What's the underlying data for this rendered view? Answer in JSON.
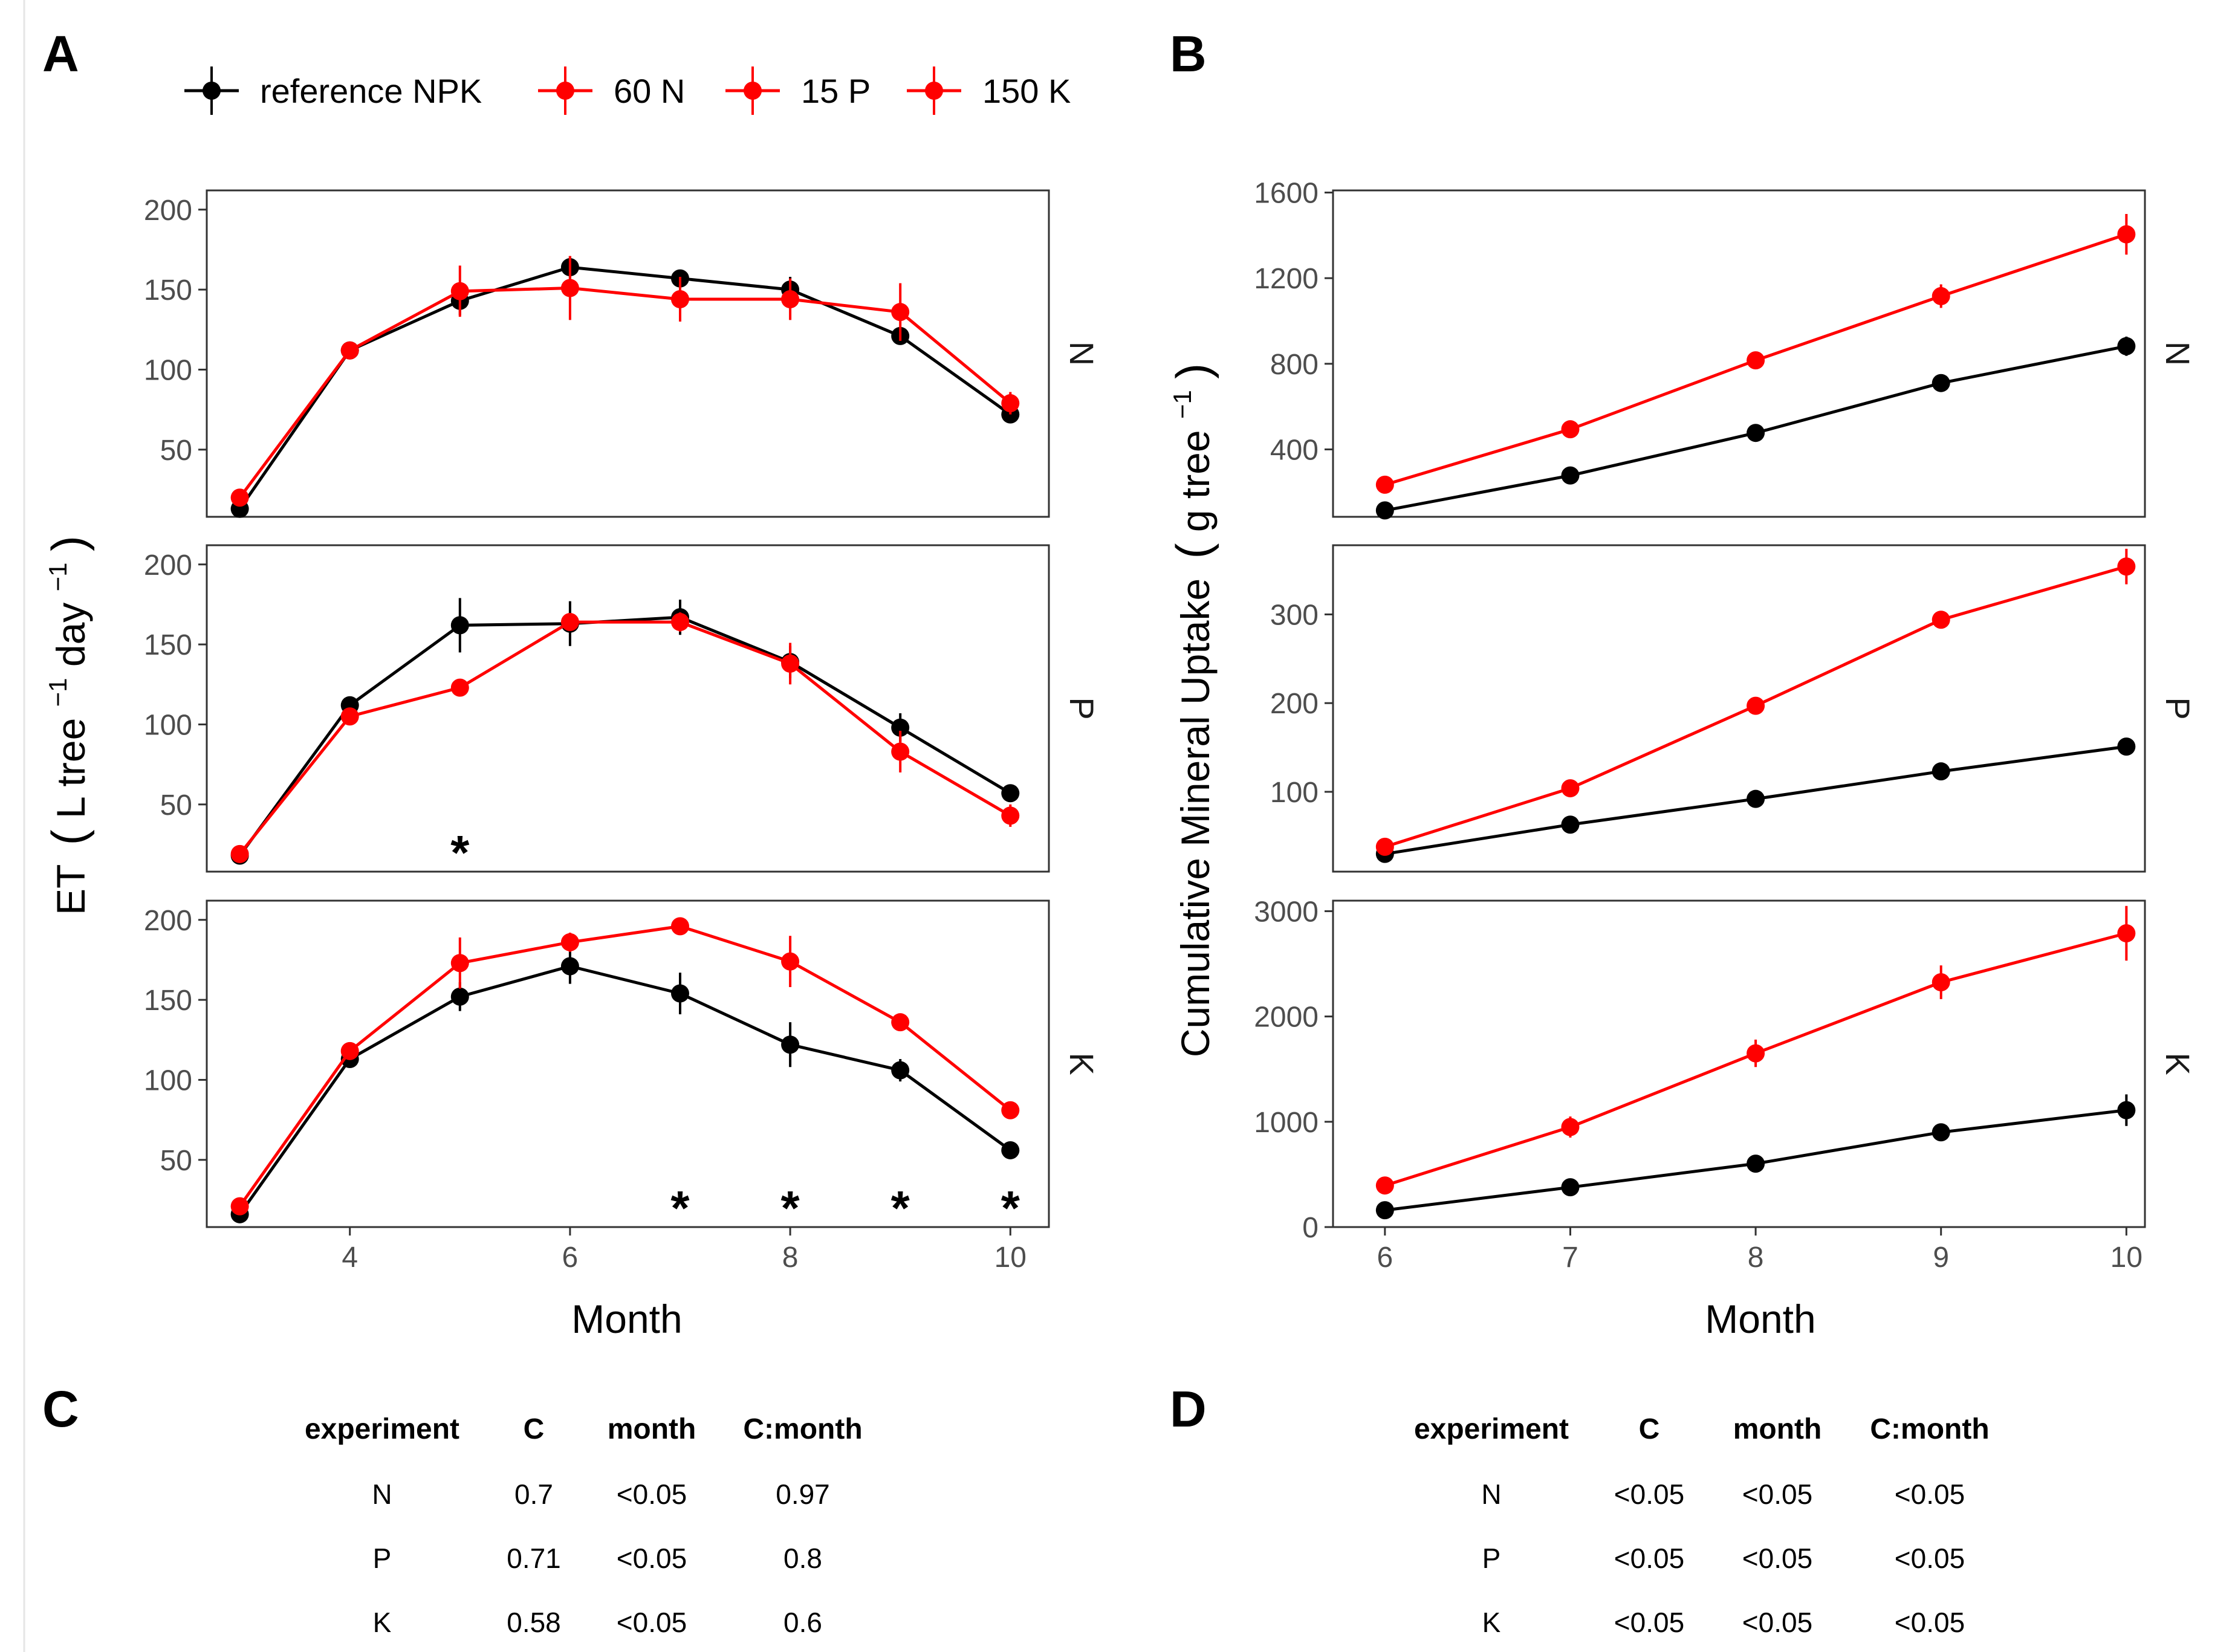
{
  "chart_data": [
    {
      "id": "A",
      "panel_label": "A",
      "type": "line",
      "xlabel": "Month",
      "ylabel": "ET (L tree⁻¹ day⁻¹)",
      "ylabel_parts": {
        "pre": "ET",
        "paren_l": "(",
        "u1": "L tree",
        "e1": "−1",
        "u2": " day",
        "e2": "−1",
        "paren_r": ")"
      },
      "xlim": [
        2.7,
        10.35
      ],
      "x_ticks": [
        4,
        6,
        8,
        10
      ],
      "x_tick_labels": [
        "4",
        "6",
        "8",
        "10"
      ],
      "ylim": [
        8,
        212
      ],
      "y_ticks": [
        50,
        100,
        150,
        200
      ],
      "y_tick_labels": [
        "50",
        "100",
        "150",
        "200"
      ],
      "legend": {
        "position": "top",
        "entries": [
          {
            "label": "reference NPK",
            "color": "#000000"
          },
          {
            "label": "60 N",
            "color": "#ff0000"
          },
          {
            "label": "15 P",
            "color": "#ff0000"
          },
          {
            "label": "150 K",
            "color": "#ff0000"
          }
        ]
      },
      "facets": [
        {
          "strip": "N",
          "series": [
            {
              "name": "reference NPK",
              "color": "#000000",
              "x": [
                3,
                4,
                5,
                6,
                7,
                8,
                9,
                10
              ],
              "y": [
                13,
                112,
                143,
                164,
                157,
                150,
                121,
                72
              ],
              "err": [
                2,
                4,
                9,
                7,
                4,
                8,
                4,
                4
              ]
            },
            {
              "name": "60 N",
              "color": "#ff0000",
              "x": [
                3,
                4,
                5,
                6,
                7,
                8,
                9,
                10
              ],
              "y": [
                20,
                112,
                149,
                151,
                144,
                144,
                136,
                79
              ],
              "err": [
                3,
                5,
                16,
                20,
                14,
                13,
                18,
                7
              ]
            }
          ],
          "stars": [],
          "stars_label": "*"
        },
        {
          "strip": "P",
          "series": [
            {
              "name": "reference NPK",
              "color": "#000000",
              "x": [
                3,
                4,
                5,
                6,
                7,
                8,
                9,
                10
              ],
              "y": [
                18,
                112,
                162,
                163,
                167,
                139,
                98,
                57
              ],
              "err": [
                3,
                4,
                17,
                14,
                11,
                10,
                9,
                4
              ]
            },
            {
              "name": "15 P",
              "color": "#ff0000",
              "x": [
                3,
                4,
                5,
                6,
                7,
                8,
                9,
                10
              ],
              "y": [
                19,
                105,
                123,
                164,
                164,
                138,
                83,
                43
              ],
              "err": [
                3,
                4,
                4,
                5,
                6,
                13,
                13,
                7
              ]
            }
          ],
          "stars": [
            5
          ],
          "stars_label": "*"
        },
        {
          "strip": "K",
          "series": [
            {
              "name": "reference NPK",
              "color": "#000000",
              "x": [
                3,
                4,
                5,
                6,
                7,
                8,
                9,
                10
              ],
              "y": [
                16,
                113,
                152,
                171,
                154,
                122,
                106,
                56
              ],
              "err": [
                3,
                4,
                9,
                11,
                13,
                14,
                7,
                4
              ]
            },
            {
              "name": "150 K",
              "color": "#ff0000",
              "x": [
                3,
                4,
                5,
                6,
                7,
                8,
                9,
                10
              ],
              "y": [
                21,
                118,
                173,
                186,
                196,
                174,
                136,
                81
              ],
              "err": [
                3,
                4,
                16,
                6,
                5,
                16,
                5,
                4
              ]
            }
          ],
          "stars": [
            7,
            8,
            9,
            10
          ],
          "stars_label": "*"
        }
      ]
    },
    {
      "id": "B",
      "panel_label": "B",
      "type": "line",
      "xlabel": "Month",
      "ylabel": "Cumulative Mineral Uptake (g tree⁻¹)",
      "ylabel_parts": {
        "pre": "Cumulative Mineral Uptake",
        "paren_l": "(",
        "u1": "g tree",
        "e1": "−1",
        "paren_r": ")"
      },
      "xlim": [
        5.72,
        10.1
      ],
      "x_ticks": [
        6,
        7,
        8,
        9,
        10
      ],
      "x_tick_labels": [
        "6",
        "7",
        "8",
        "9",
        "10"
      ],
      "facets": [
        {
          "strip": "N",
          "ylim": [
            85,
            1610
          ],
          "y_ticks": [
            400,
            800,
            1200,
            1600
          ],
          "y_tick_labels": [
            "400",
            "800",
            "1200",
            "1600"
          ],
          "series": [
            {
              "name": "reference NPK",
              "color": "#000000",
              "x": [
                6,
                7,
                8,
                9,
                10
              ],
              "y": [
                115,
                278,
                477,
                710,
                882
              ],
              "err": [
                8,
                15,
                20,
                25,
                45
              ]
            },
            {
              "name": "60 N",
              "color": "#ff0000",
              "x": [
                6,
                7,
                8,
                9,
                10
              ],
              "y": [
                235,
                494,
                816,
                1116,
                1405
              ],
              "err": [
                10,
                20,
                35,
                55,
                95
              ]
            }
          ]
        },
        {
          "strip": "P",
          "ylim": [
            10,
            378
          ],
          "y_ticks": [
            100,
            200,
            300
          ],
          "y_tick_labels": [
            "100",
            "200",
            "300"
          ],
          "series": [
            {
              "name": "reference NPK",
              "color": "#000000",
              "x": [
                6,
                7,
                8,
                9,
                10
              ],
              "y": [
                30,
                63,
                92,
                123,
                151
              ],
              "err": [
                2,
                3,
                3,
                4,
                5
              ]
            },
            {
              "name": "15 P",
              "color": "#ff0000",
              "x": [
                6,
                7,
                8,
                9,
                10
              ],
              "y": [
                38,
                104,
                197,
                294,
                354
              ],
              "err": [
                3,
                6,
                8,
                10,
                20
              ]
            }
          ]
        },
        {
          "strip": "K",
          "ylim": [
            0,
            3100
          ],
          "y_ticks": [
            0,
            1000,
            2000,
            3000
          ],
          "y_tick_labels": [
            "0",
            "1000",
            "2000",
            "3000"
          ],
          "series": [
            {
              "name": "reference NPK",
              "color": "#000000",
              "x": [
                6,
                7,
                8,
                9,
                10
              ],
              "y": [
                160,
                378,
                602,
                900,
                1110
              ],
              "err": [
                20,
                30,
                40,
                60,
                150
              ]
            },
            {
              "name": "150 K",
              "color": "#ff0000",
              "x": [
                6,
                7,
                8,
                9,
                10
              ],
              "y": [
                395,
                950,
                1650,
                2325,
                2790
              ],
              "err": [
                50,
                100,
                130,
                160,
                260
              ]
            }
          ]
        }
      ]
    },
    {
      "id": "C",
      "panel_label": "C",
      "type": "table",
      "columns": [
        "experiment",
        "C",
        "month",
        "C:month"
      ],
      "rows": [
        [
          "N",
          "0.7",
          "<0.05",
          "0.97"
        ],
        [
          "P",
          "0.71",
          "<0.05",
          "0.8"
        ],
        [
          "K",
          "0.58",
          "<0.05",
          "0.6"
        ]
      ]
    },
    {
      "id": "D",
      "panel_label": "D",
      "type": "table",
      "columns": [
        "experiment",
        "C",
        "month",
        "C:month"
      ],
      "rows": [
        [
          "N",
          "<0.05",
          "<0.05",
          "<0.05"
        ],
        [
          "P",
          "<0.05",
          "<0.05",
          "<0.05"
        ],
        [
          "K",
          "<0.05",
          "<0.05",
          "<0.05"
        ]
      ]
    }
  ]
}
